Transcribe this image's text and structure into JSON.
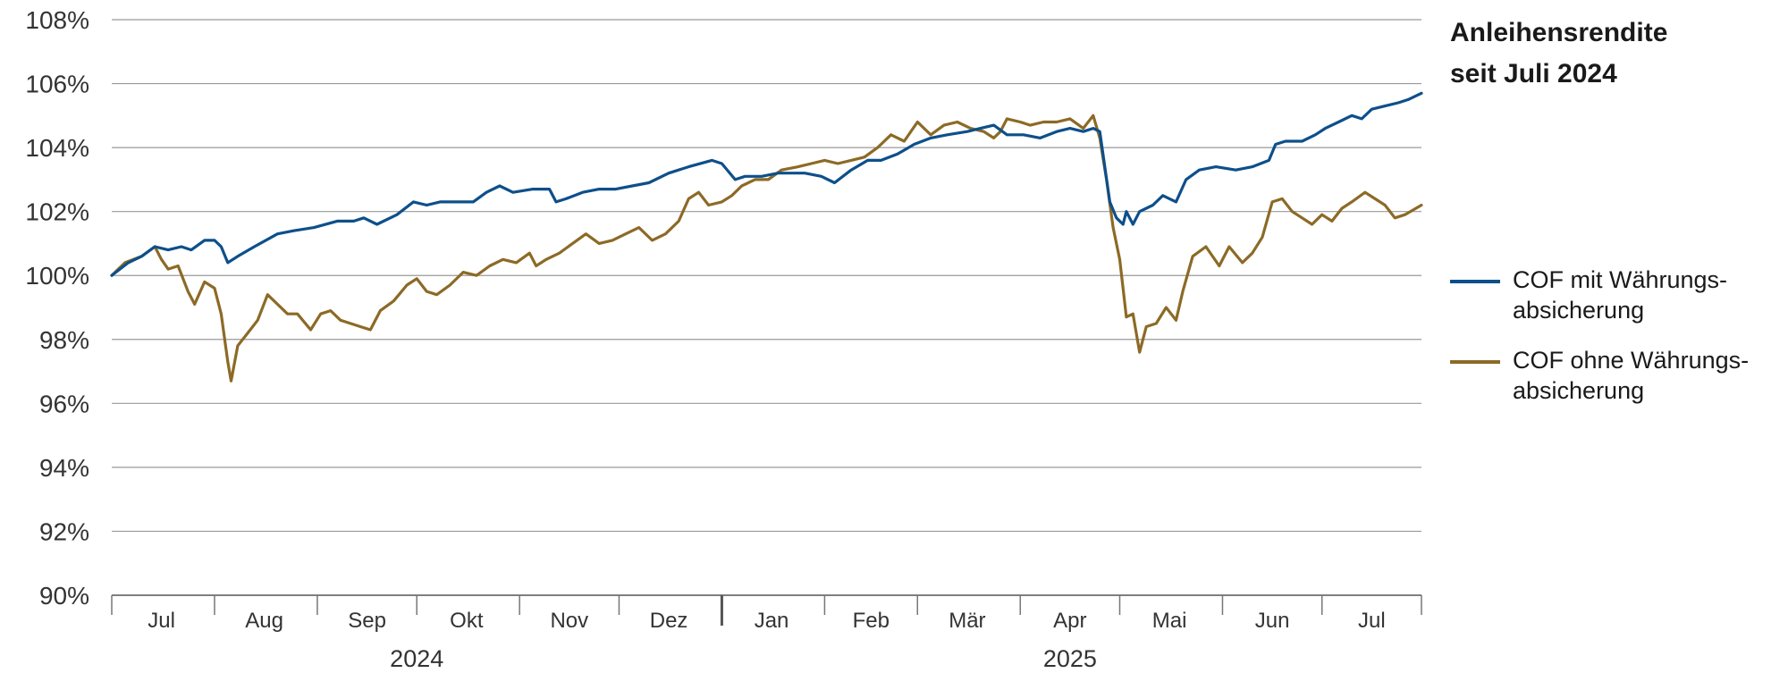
{
  "chart_data": {
    "type": "line",
    "title_lines": [
      "Anleihensrendite",
      "seit Juli 2024"
    ],
    "y_ticks": [
      "90%",
      "92%",
      "94%",
      "96%",
      "98%",
      "100%",
      "102%",
      "104%",
      "106%",
      "108%"
    ],
    "ylim": [
      90,
      108
    ],
    "xlim": [
      "2024-07-01",
      "2025-07-31"
    ],
    "month_labels": [
      {
        "label": "Jul",
        "center": "2024-07-16"
      },
      {
        "label": "Aug",
        "center": "2024-08-16"
      },
      {
        "label": "Sep",
        "center": "2024-09-16"
      },
      {
        "label": "Okt",
        "center": "2024-10-16"
      },
      {
        "label": "Nov",
        "center": "2024-11-16"
      },
      {
        "label": "Dez",
        "center": "2024-12-16"
      },
      {
        "label": "Jan",
        "center": "2025-01-16"
      },
      {
        "label": "Feb",
        "center": "2025-02-15"
      },
      {
        "label": "Mär",
        "center": "2025-03-16"
      },
      {
        "label": "Apr",
        "center": "2025-04-16"
      },
      {
        "label": "Mai",
        "center": "2025-05-16"
      },
      {
        "label": "Jun",
        "center": "2025-06-16"
      },
      {
        "label": "Jul",
        "center": "2025-07-16"
      }
    ],
    "month_boundaries": [
      "2024-07-01",
      "2024-08-01",
      "2024-09-01",
      "2024-10-01",
      "2024-11-01",
      "2024-12-01",
      "2025-01-01",
      "2025-02-01",
      "2025-03-01",
      "2025-04-01",
      "2025-05-01",
      "2025-06-01",
      "2025-07-01",
      "2025-07-31"
    ],
    "year_boundary": "2025-01-01",
    "year_labels": [
      {
        "label": "2024",
        "center": "2024-10-01"
      },
      {
        "label": "2025",
        "center": "2025-04-16"
      }
    ],
    "grid": true,
    "legend_position": "right",
    "series": [
      {
        "name_lines": [
          "COF mit Währungs-",
          "absicherung"
        ],
        "color": "#0d4f8b",
        "points": [
          [
            "2024-07-01",
            100.0
          ],
          [
            "2024-07-06",
            100.4
          ],
          [
            "2024-07-10",
            100.6
          ],
          [
            "2024-07-14",
            100.9
          ],
          [
            "2024-07-18",
            100.8
          ],
          [
            "2024-07-22",
            100.9
          ],
          [
            "2024-07-25",
            100.8
          ],
          [
            "2024-07-29",
            101.1
          ],
          [
            "2024-08-01",
            101.1
          ],
          [
            "2024-08-03",
            100.9
          ],
          [
            "2024-08-05",
            100.4
          ],
          [
            "2024-08-08",
            100.6
          ],
          [
            "2024-08-13",
            100.9
          ],
          [
            "2024-08-20",
            101.3
          ],
          [
            "2024-08-25",
            101.4
          ],
          [
            "2024-08-31",
            101.5
          ],
          [
            "2024-09-07",
            101.7
          ],
          [
            "2024-09-12",
            101.7
          ],
          [
            "2024-09-15",
            101.8
          ],
          [
            "2024-09-19",
            101.6
          ],
          [
            "2024-09-25",
            101.9
          ],
          [
            "2024-09-30",
            102.3
          ],
          [
            "2024-10-04",
            102.2
          ],
          [
            "2024-10-08",
            102.3
          ],
          [
            "2024-10-13",
            102.3
          ],
          [
            "2024-10-18",
            102.3
          ],
          [
            "2024-10-22",
            102.6
          ],
          [
            "2024-10-26",
            102.8
          ],
          [
            "2024-10-30",
            102.6
          ],
          [
            "2024-11-05",
            102.7
          ],
          [
            "2024-11-10",
            102.7
          ],
          [
            "2024-11-12",
            102.3
          ],
          [
            "2024-11-15",
            102.4
          ],
          [
            "2024-11-20",
            102.6
          ],
          [
            "2024-11-25",
            102.7
          ],
          [
            "2024-11-30",
            102.7
          ],
          [
            "2024-12-05",
            102.8
          ],
          [
            "2024-12-10",
            102.9
          ],
          [
            "2024-12-16",
            103.2
          ],
          [
            "2024-12-22",
            103.4
          ],
          [
            "2024-12-29",
            103.6
          ],
          [
            "2025-01-01",
            103.5
          ],
          [
            "2025-01-05",
            103.0
          ],
          [
            "2025-01-08",
            103.1
          ],
          [
            "2025-01-13",
            103.1
          ],
          [
            "2025-01-18",
            103.2
          ],
          [
            "2025-01-26",
            103.2
          ],
          [
            "2025-01-31",
            103.1
          ],
          [
            "2025-02-04",
            102.9
          ],
          [
            "2025-02-09",
            103.3
          ],
          [
            "2025-02-14",
            103.6
          ],
          [
            "2025-02-18",
            103.6
          ],
          [
            "2025-02-23",
            103.8
          ],
          [
            "2025-02-28",
            104.1
          ],
          [
            "2025-03-05",
            104.3
          ],
          [
            "2025-03-10",
            104.4
          ],
          [
            "2025-03-16",
            104.5
          ],
          [
            "2025-03-20",
            104.6
          ],
          [
            "2025-03-24",
            104.7
          ],
          [
            "2025-03-28",
            104.4
          ],
          [
            "2025-04-02",
            104.4
          ],
          [
            "2025-04-07",
            104.3
          ],
          [
            "2025-04-12",
            104.5
          ],
          [
            "2025-04-16",
            104.6
          ],
          [
            "2025-04-20",
            104.5
          ],
          [
            "2025-04-23",
            104.6
          ],
          [
            "2025-04-25",
            104.5
          ],
          [
            "2025-04-28",
            102.3
          ],
          [
            "2025-04-30",
            101.8
          ],
          [
            "2025-05-02",
            101.6
          ],
          [
            "2025-05-03",
            102.0
          ],
          [
            "2025-05-05",
            101.6
          ],
          [
            "2025-05-07",
            102.0
          ],
          [
            "2025-05-11",
            102.2
          ],
          [
            "2025-05-14",
            102.5
          ],
          [
            "2025-05-18",
            102.3
          ],
          [
            "2025-05-21",
            103.0
          ],
          [
            "2025-05-25",
            103.3
          ],
          [
            "2025-05-30",
            103.4
          ],
          [
            "2025-06-05",
            103.3
          ],
          [
            "2025-06-10",
            103.4
          ],
          [
            "2025-06-15",
            103.6
          ],
          [
            "2025-06-17",
            104.1
          ],
          [
            "2025-06-20",
            104.2
          ],
          [
            "2025-06-25",
            104.2
          ],
          [
            "2025-06-29",
            104.4
          ],
          [
            "2025-07-02",
            104.6
          ],
          [
            "2025-07-06",
            104.8
          ],
          [
            "2025-07-10",
            105.0
          ],
          [
            "2025-07-13",
            104.9
          ],
          [
            "2025-07-16",
            105.2
          ],
          [
            "2025-07-20",
            105.3
          ],
          [
            "2025-07-24",
            105.4
          ],
          [
            "2025-07-27",
            105.5
          ],
          [
            "2025-07-31",
            105.7
          ]
        ]
      },
      {
        "name_lines": [
          "COF ohne Währungs-",
          "absicherung"
        ],
        "color": "#8c6a26",
        "points": [
          [
            "2024-07-01",
            100.0
          ],
          [
            "2024-07-05",
            100.4
          ],
          [
            "2024-07-10",
            100.6
          ],
          [
            "2024-07-14",
            100.9
          ],
          [
            "2024-07-16",
            100.5
          ],
          [
            "2024-07-18",
            100.2
          ],
          [
            "2024-07-21",
            100.3
          ],
          [
            "2024-07-24",
            99.5
          ],
          [
            "2024-07-26",
            99.1
          ],
          [
            "2024-07-29",
            99.8
          ],
          [
            "2024-08-01",
            99.6
          ],
          [
            "2024-08-03",
            98.8
          ],
          [
            "2024-08-05",
            97.3
          ],
          [
            "2024-08-06",
            96.7
          ],
          [
            "2024-08-08",
            97.8
          ],
          [
            "2024-08-11",
            98.2
          ],
          [
            "2024-08-14",
            98.6
          ],
          [
            "2024-08-17",
            99.4
          ],
          [
            "2024-08-20",
            99.1
          ],
          [
            "2024-08-23",
            98.8
          ],
          [
            "2024-08-26",
            98.8
          ],
          [
            "2024-08-30",
            98.3
          ],
          [
            "2024-09-02",
            98.8
          ],
          [
            "2024-09-05",
            98.9
          ],
          [
            "2024-09-08",
            98.6
          ],
          [
            "2024-09-11",
            98.5
          ],
          [
            "2024-09-14",
            98.4
          ],
          [
            "2024-09-17",
            98.3
          ],
          [
            "2024-09-20",
            98.9
          ],
          [
            "2024-09-24",
            99.2
          ],
          [
            "2024-09-28",
            99.7
          ],
          [
            "2024-10-01",
            99.9
          ],
          [
            "2024-10-04",
            99.5
          ],
          [
            "2024-10-07",
            99.4
          ],
          [
            "2024-10-11",
            99.7
          ],
          [
            "2024-10-15",
            100.1
          ],
          [
            "2024-10-19",
            100.0
          ],
          [
            "2024-10-23",
            100.3
          ],
          [
            "2024-10-27",
            100.5
          ],
          [
            "2024-10-31",
            100.4
          ],
          [
            "2024-11-04",
            100.7
          ],
          [
            "2024-11-06",
            100.3
          ],
          [
            "2024-11-09",
            100.5
          ],
          [
            "2024-11-13",
            100.7
          ],
          [
            "2024-11-17",
            101.0
          ],
          [
            "2024-11-21",
            101.3
          ],
          [
            "2024-11-25",
            101.0
          ],
          [
            "2024-11-29",
            101.1
          ],
          [
            "2024-12-03",
            101.3
          ],
          [
            "2024-12-07",
            101.5
          ],
          [
            "2024-12-11",
            101.1
          ],
          [
            "2024-12-15",
            101.3
          ],
          [
            "2024-12-19",
            101.7
          ],
          [
            "2024-12-22",
            102.4
          ],
          [
            "2024-12-25",
            102.6
          ],
          [
            "2024-12-28",
            102.2
          ],
          [
            "2025-01-01",
            102.3
          ],
          [
            "2025-01-04",
            102.5
          ],
          [
            "2025-01-07",
            102.8
          ],
          [
            "2025-01-11",
            103.0
          ],
          [
            "2025-01-15",
            103.0
          ],
          [
            "2025-01-19",
            103.3
          ],
          [
            "2025-01-24",
            103.4
          ],
          [
            "2025-01-28",
            103.5
          ],
          [
            "2025-02-01",
            103.6
          ],
          [
            "2025-02-05",
            103.5
          ],
          [
            "2025-02-09",
            103.6
          ],
          [
            "2025-02-13",
            103.7
          ],
          [
            "2025-02-17",
            104.0
          ],
          [
            "2025-02-21",
            104.4
          ],
          [
            "2025-02-25",
            104.2
          ],
          [
            "2025-03-01",
            104.8
          ],
          [
            "2025-03-05",
            104.4
          ],
          [
            "2025-03-09",
            104.7
          ],
          [
            "2025-03-13",
            104.8
          ],
          [
            "2025-03-17",
            104.6
          ],
          [
            "2025-03-21",
            104.5
          ],
          [
            "2025-03-24",
            104.3
          ],
          [
            "2025-03-26",
            104.5
          ],
          [
            "2025-03-28",
            104.9
          ],
          [
            "2025-04-01",
            104.8
          ],
          [
            "2025-04-04",
            104.7
          ],
          [
            "2025-04-08",
            104.8
          ],
          [
            "2025-04-12",
            104.8
          ],
          [
            "2025-04-16",
            104.9
          ],
          [
            "2025-04-20",
            104.6
          ],
          [
            "2025-04-23",
            105.0
          ],
          [
            "2025-04-25",
            104.3
          ],
          [
            "2025-04-27",
            103.0
          ],
          [
            "2025-04-29",
            101.5
          ],
          [
            "2025-05-01",
            100.5
          ],
          [
            "2025-05-03",
            98.7
          ],
          [
            "2025-05-05",
            98.8
          ],
          [
            "2025-05-07",
            97.6
          ],
          [
            "2025-05-09",
            98.4
          ],
          [
            "2025-05-12",
            98.5
          ],
          [
            "2025-05-15",
            99.0
          ],
          [
            "2025-05-18",
            98.6
          ],
          [
            "2025-05-20",
            99.5
          ],
          [
            "2025-05-23",
            100.6
          ],
          [
            "2025-05-27",
            100.9
          ],
          [
            "2025-05-31",
            100.3
          ],
          [
            "2025-06-03",
            100.9
          ],
          [
            "2025-06-07",
            100.4
          ],
          [
            "2025-06-10",
            100.7
          ],
          [
            "2025-06-13",
            101.2
          ],
          [
            "2025-06-16",
            102.3
          ],
          [
            "2025-06-19",
            102.4
          ],
          [
            "2025-06-22",
            102.0
          ],
          [
            "2025-06-25",
            101.8
          ],
          [
            "2025-06-28",
            101.6
          ],
          [
            "2025-07-01",
            101.9
          ],
          [
            "2025-07-04",
            101.7
          ],
          [
            "2025-07-07",
            102.1
          ],
          [
            "2025-07-10",
            102.3
          ],
          [
            "2025-07-14",
            102.6
          ],
          [
            "2025-07-17",
            102.4
          ],
          [
            "2025-07-20",
            102.2
          ],
          [
            "2025-07-23",
            101.8
          ],
          [
            "2025-07-26",
            101.9
          ],
          [
            "2025-07-31",
            102.2
          ]
        ]
      }
    ]
  }
}
